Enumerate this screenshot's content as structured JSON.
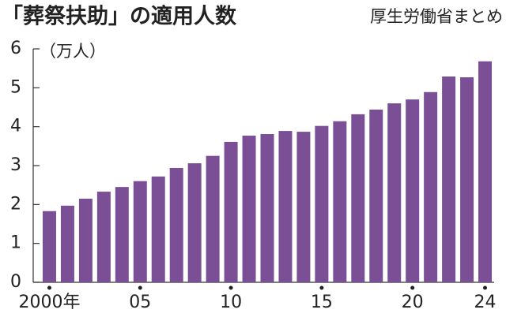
{
  "chart_data": {
    "type": "bar",
    "title": "「葬祭扶助」の適用人数",
    "source": "厚生労働省まとめ",
    "unit_label": "（万人）",
    "categories": [
      "2000年",
      null,
      null,
      null,
      null,
      "05",
      null,
      null,
      null,
      null,
      "10",
      null,
      null,
      null,
      null,
      "15",
      null,
      null,
      null,
      null,
      "20",
      null,
      null,
      null,
      "24"
    ],
    "values": [
      1.83,
      1.97,
      2.15,
      2.33,
      2.45,
      2.6,
      2.72,
      2.94,
      3.06,
      3.25,
      3.61,
      3.77,
      3.81,
      3.89,
      3.87,
      4.02,
      4.14,
      4.32,
      4.44,
      4.6,
      4.7,
      4.89,
      5.29,
      5.27,
      5.68
    ],
    "color": "#7b4f96",
    "ylim": [
      0,
      6
    ],
    "yticks": [
      0,
      1,
      2,
      3,
      4,
      5,
      6
    ]
  }
}
